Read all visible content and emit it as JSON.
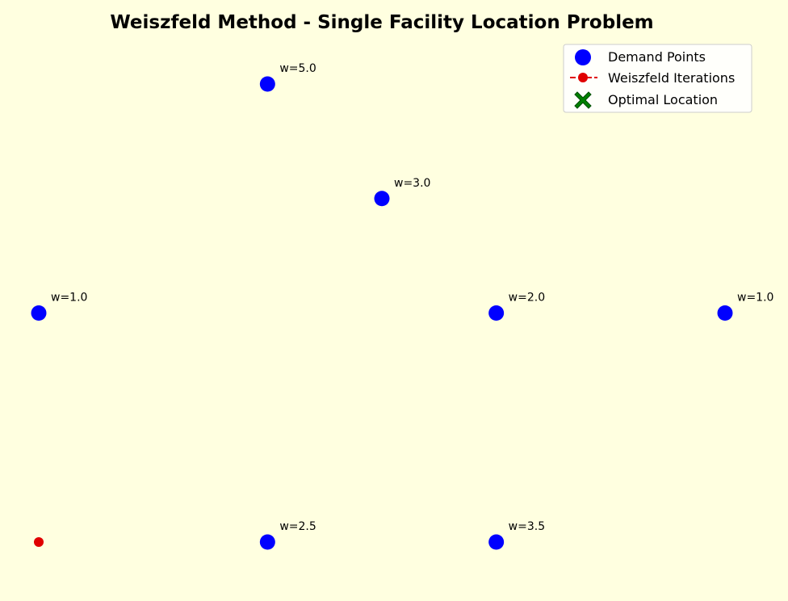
{
  "chart_data": {
    "type": "scatter",
    "title": "Weiszfeld Method - Single Facility Location Problem",
    "xlim": [
      0,
      6
    ],
    "ylim": [
      0,
      4
    ],
    "grid": false,
    "axes_visible": false,
    "legend_position": "top-right",
    "legend": [
      {
        "label": "Demand Points",
        "marker": "circle",
        "color": "#0000ff"
      },
      {
        "label": "Weiszfeld Iterations",
        "marker": "dashed-line-dot",
        "color": "#e00000"
      },
      {
        "label": "Optimal Location",
        "marker": "x-filled",
        "color": "#008000"
      }
    ],
    "series": [
      {
        "name": "Demand Points",
        "color": "#0000ff",
        "points": [
          {
            "x": 2,
            "y": 4,
            "weight_label": "w=5.0"
          },
          {
            "x": 3,
            "y": 3,
            "weight_label": "w=3.0"
          },
          {
            "x": 0,
            "y": 2,
            "weight_label": "w=1.0"
          },
          {
            "x": 4,
            "y": 2,
            "weight_label": "w=2.0"
          },
          {
            "x": 6,
            "y": 2,
            "weight_label": "w=1.0"
          },
          {
            "x": 2,
            "y": 0,
            "weight_label": "w=2.5"
          },
          {
            "x": 4,
            "y": 0,
            "weight_label": "w=3.5"
          }
        ]
      },
      {
        "name": "Weiszfeld Iterations",
        "color": "#e00000",
        "points": [
          {
            "x": 0,
            "y": 0
          }
        ]
      }
    ]
  }
}
